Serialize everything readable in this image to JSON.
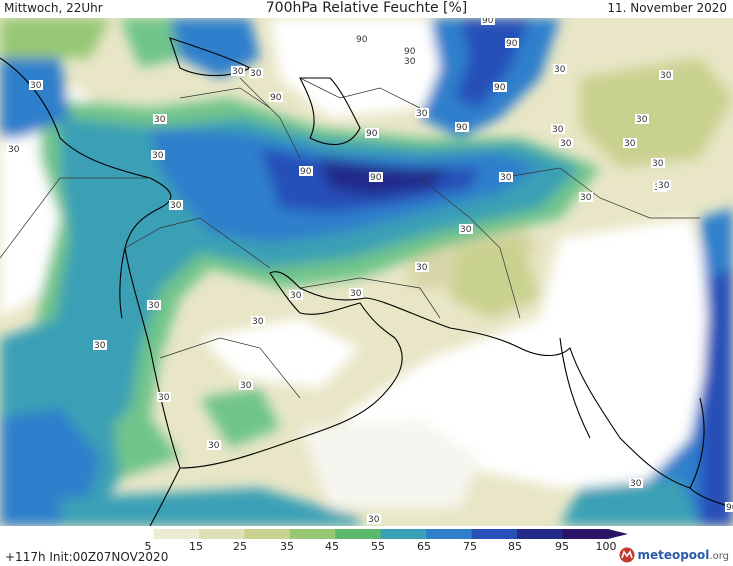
{
  "header": {
    "left": "Mittwoch, 22Uhr",
    "center": "700hPa Relative Feuchte [%]",
    "right": "11. November 2020"
  },
  "footer": {
    "run": "+117h  Init:00Z07NOV2020",
    "logo_main": "meteopool",
    "logo_tld": ".org"
  },
  "colorbar": {
    "labels": [
      "5",
      "15",
      "25",
      "35",
      "45",
      "55",
      "65",
      "75",
      "85",
      "95",
      "100"
    ],
    "colors": [
      "#ffffff",
      "#ecebd4",
      "#e0e0b6",
      "#c9d18f",
      "#96c874",
      "#5cb86d",
      "#3aa0b5",
      "#2f7fcc",
      "#2750b8",
      "#232a8a",
      "#2b1466"
    ]
  },
  "contours": {
    "labels": [
      "90",
      "90",
      "90",
      "90",
      "30",
      "30",
      "90",
      "30",
      "90",
      "90",
      "90",
      "30",
      "30",
      "30",
      "90",
      "30",
      "30",
      "30",
      "30",
      "30",
      "90",
      "90",
      "90",
      "90",
      "30",
      "30",
      "30",
      "30",
      "30",
      "30",
      "30",
      "30",
      "30",
      "30",
      "30",
      "30",
      "30",
      "30",
      "30",
      "30",
      "30",
      "30",
      "30",
      "30",
      "30",
      "90"
    ]
  },
  "icons": [
    "meteopool-logo-icon"
  ]
}
